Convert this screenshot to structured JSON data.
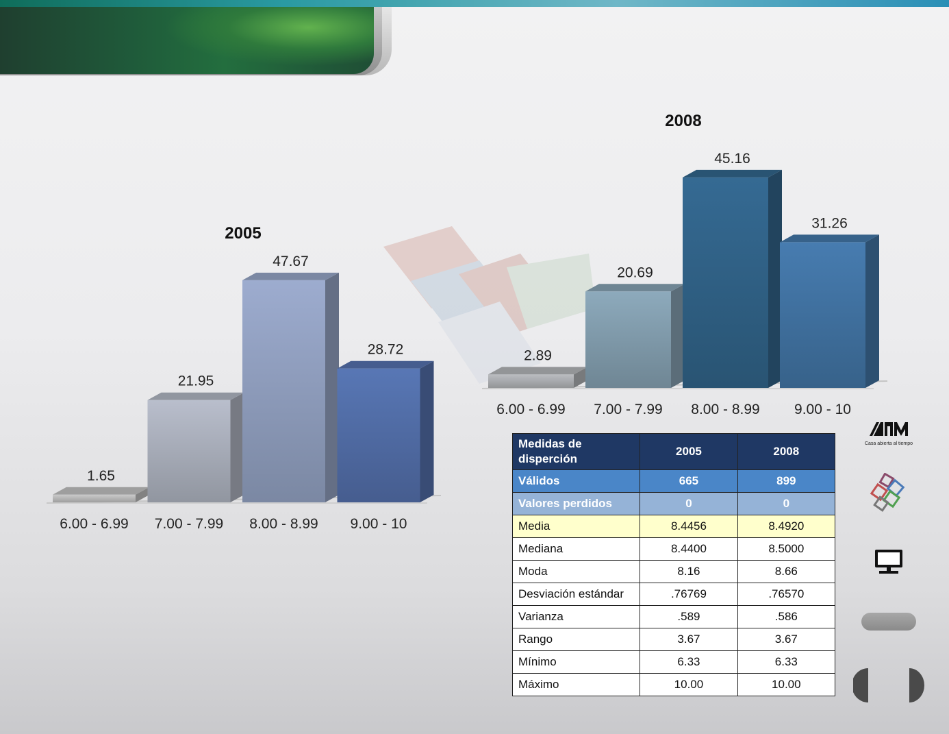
{
  "chart_data": [
    {
      "type": "bar",
      "title": "2005",
      "categories": [
        "6.00 - 6.99",
        "7.00 - 7.99",
        "8.00 - 8.99",
        "9.00 - 10"
      ],
      "values": [
        1.65,
        21.95,
        47.67,
        28.72
      ],
      "data_labels": [
        "1.65",
        "21.95",
        "47.67",
        "28.72"
      ],
      "colors": [
        "#b4b4b4",
        "#a5aab6",
        "#8c9ab9",
        "#4f6aa2"
      ],
      "style": "3d"
    },
    {
      "type": "bar",
      "title": "2008",
      "categories": [
        "6.00 - 6.99",
        "7.00 - 7.99",
        "8.00 - 8.99",
        "9.00 - 10"
      ],
      "values": [
        2.89,
        20.69,
        45.16,
        31.26
      ],
      "data_labels": [
        "2.89",
        "20.69",
        "45.16",
        "31.26"
      ],
      "colors": [
        "#a7a9ac",
        "#7e98a8",
        "#2f5f83",
        "#3f6f9d"
      ],
      "style": "3d"
    }
  ],
  "table": {
    "header": [
      "Medidas de disperción",
      "2005",
      "2008"
    ],
    "rows": [
      [
        "Válidos",
        "665",
        "899"
      ],
      [
        "Valores perdidos",
        "0",
        "0"
      ],
      [
        "Media",
        "8.4456",
        "8.4920"
      ],
      [
        "Mediana",
        "8.4400",
        "8.5000"
      ],
      [
        "Moda",
        "8.16",
        "8.66"
      ],
      [
        "Desviación estándar",
        ".76769",
        ".76570"
      ],
      [
        "Varianza",
        ".589",
        ".586"
      ],
      [
        "Rango",
        "3.67",
        "3.67"
      ],
      [
        "Mínimo",
        "6.33",
        "6.33"
      ],
      [
        "Máximo",
        "10.00",
        "10.00"
      ]
    ]
  },
  "sidebar": {
    "logo_caption": "Casa abierta al tiempo",
    "logo_icon": "uam-logo-icon",
    "cubes_icon": "colored-cubes-icon",
    "monitor_icon": "monitor-icon",
    "button_icon": "gray-pill-button",
    "prev_icon": "prev-half-circle-icon",
    "next_icon": "next-half-circle-icon"
  }
}
